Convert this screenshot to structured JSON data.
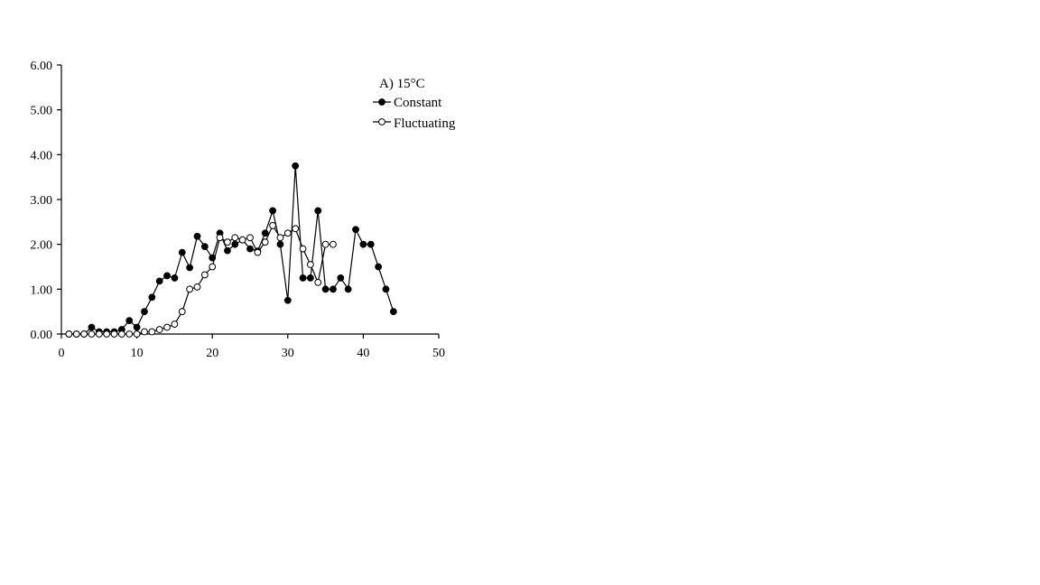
{
  "chart_data": {
    "type": "line",
    "title": "A) 15°C",
    "xlabel": "",
    "ylabel": "",
    "xlim": [
      0,
      50
    ],
    "ylim": [
      0,
      6
    ],
    "x_ticks": [
      0,
      10,
      20,
      30,
      40,
      50
    ],
    "y_ticks": [
      "0.00",
      "1.00",
      "2.00",
      "3.00",
      "4.00",
      "5.00",
      "6.00"
    ],
    "grid": false,
    "legend": "top-right",
    "series": [
      {
        "name": "Constant",
        "marker": "filled-circle",
        "points": [
          [
            1,
            0
          ],
          [
            2,
            0
          ],
          [
            3,
            0
          ],
          [
            4,
            0.15
          ],
          [
            5,
            0.05
          ],
          [
            6,
            0.05
          ],
          [
            7,
            0.05
          ],
          [
            8,
            0.1
          ],
          [
            9,
            0.3
          ],
          [
            10,
            0.15
          ],
          [
            11,
            0.5
          ],
          [
            12,
            0.82
          ],
          [
            13,
            1.18
          ],
          [
            14,
            1.3
          ],
          [
            15,
            1.25
          ],
          [
            16,
            1.82
          ],
          [
            17,
            1.48
          ],
          [
            18,
            2.18
          ],
          [
            19,
            1.95
          ],
          [
            20,
            1.7
          ],
          [
            21,
            2.25
          ],
          [
            22,
            1.86
          ],
          [
            23,
            2.0
          ],
          [
            24,
            2.1
          ],
          [
            25,
            1.9
          ],
          [
            26,
            1.85
          ],
          [
            27,
            2.25
          ],
          [
            28,
            2.75
          ],
          [
            29,
            2.0
          ],
          [
            30,
            0.75
          ],
          [
            31,
            3.75
          ],
          [
            32,
            1.25
          ],
          [
            33,
            1.25
          ],
          [
            34,
            2.75
          ],
          [
            35,
            1.0
          ],
          [
            36,
            1.0
          ],
          [
            37,
            1.25
          ],
          [
            38,
            1.0
          ],
          [
            39,
            2.33
          ],
          [
            40,
            2.0
          ],
          [
            41,
            2.0
          ],
          [
            42,
            1.5
          ],
          [
            43,
            1.0
          ],
          [
            44,
            0.5
          ]
        ]
      },
      {
        "name": "Fluctuating",
        "marker": "open-circle",
        "points": [
          [
            1,
            0
          ],
          [
            2,
            0
          ],
          [
            3,
            0
          ],
          [
            4,
            0
          ],
          [
            5,
            0
          ],
          [
            6,
            0
          ],
          [
            7,
            0
          ],
          [
            8,
            0
          ],
          [
            9,
            0
          ],
          [
            10,
            0
          ],
          [
            11,
            0.05
          ],
          [
            12,
            0.05
          ],
          [
            13,
            0.1
          ],
          [
            14,
            0.15
          ],
          [
            15,
            0.22
          ],
          [
            16,
            0.5
          ],
          [
            17,
            1.0
          ],
          [
            18,
            1.05
          ],
          [
            19,
            1.32
          ],
          [
            20,
            1.5
          ],
          [
            21,
            2.15
          ],
          [
            22,
            2.05
          ],
          [
            23,
            2.15
          ],
          [
            24,
            2.1
          ],
          [
            25,
            2.15
          ],
          [
            26,
            1.82
          ],
          [
            27,
            2.05
          ],
          [
            28,
            2.42
          ],
          [
            29,
            2.15
          ],
          [
            30,
            2.25
          ],
          [
            31,
            2.35
          ],
          [
            32,
            1.9
          ],
          [
            33,
            1.55
          ],
          [
            34,
            1.15
          ],
          [
            35,
            2.0
          ],
          [
            36,
            2.0
          ]
        ]
      }
    ]
  }
}
